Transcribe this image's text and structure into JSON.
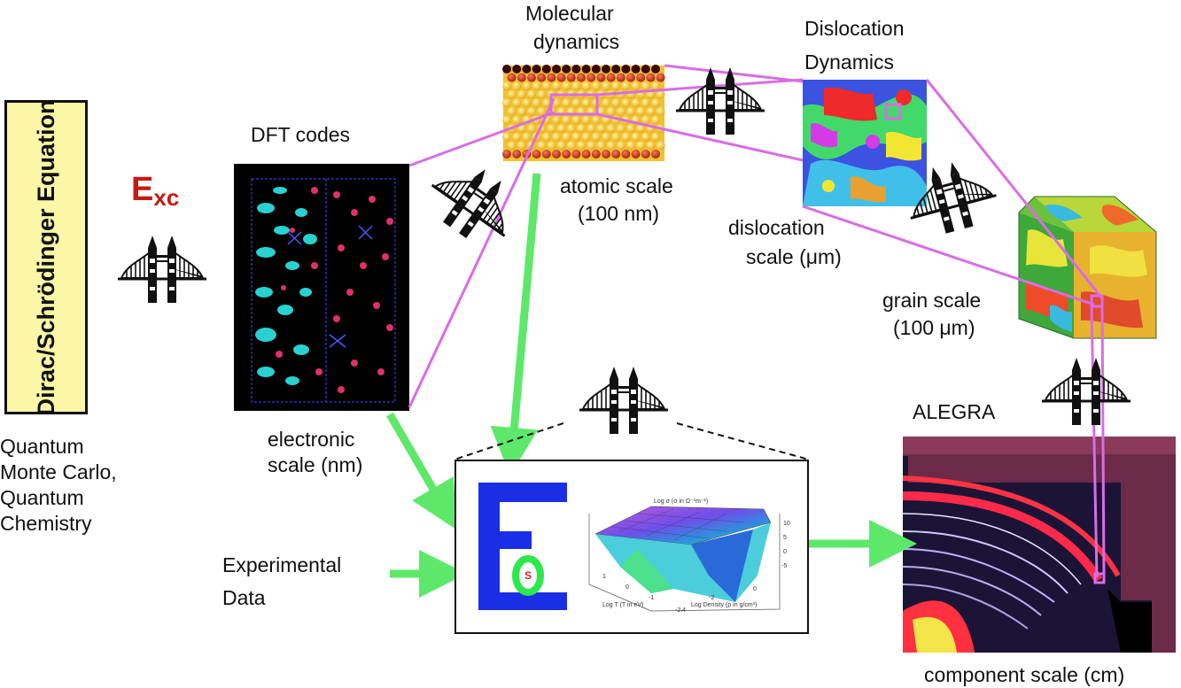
{
  "left_column": {
    "equation_box": "Dirac/Schrödinger Equation",
    "exc_symbol": "E",
    "exc_subscript": "xc",
    "qmc_lines": [
      "Quantum",
      "Monte Carlo,",
      "Quantum",
      "Chemistry"
    ]
  },
  "dft": {
    "title": "DFT codes",
    "scale_lines": [
      "electronic",
      "scale (nm)"
    ]
  },
  "md": {
    "title_lines": [
      "Molecular",
      "dynamics"
    ],
    "scale_lines": [
      "atomic scale",
      "(100 nm)"
    ]
  },
  "dd": {
    "title_lines": [
      "Dislocation",
      "Dynamics"
    ],
    "scale_lines": [
      "dislocation",
      "scale (μm)"
    ]
  },
  "grain": {
    "scale_lines": [
      "grain scale",
      "(100 μm)"
    ]
  },
  "alegra": {
    "title": "ALEGRA",
    "scale": "component scale (cm)"
  },
  "experimental": {
    "lines": [
      "Experimental",
      "Data"
    ]
  },
  "eos": {
    "letter_e": "E",
    "letter_s": "S",
    "plot_title": "Log σ (σ in Ω⁻¹m⁻¹)",
    "z_ticks": [
      "10",
      "5",
      "0",
      "-5"
    ],
    "x_axis_label": "Log T (T in eV)",
    "x_ticks": [
      "1",
      "0",
      "-1"
    ],
    "y_axis_label": "Log Density (ρ in g/cm³)",
    "y_ticks": [
      "0",
      "-2",
      "-2.4"
    ]
  },
  "colors": {
    "connector": "#d96ce6",
    "arrow": "#5ee86a",
    "equation_fill": "#fbf7a6",
    "exc_red": "#c41b12"
  },
  "icons": [
    "bridge-icon"
  ]
}
